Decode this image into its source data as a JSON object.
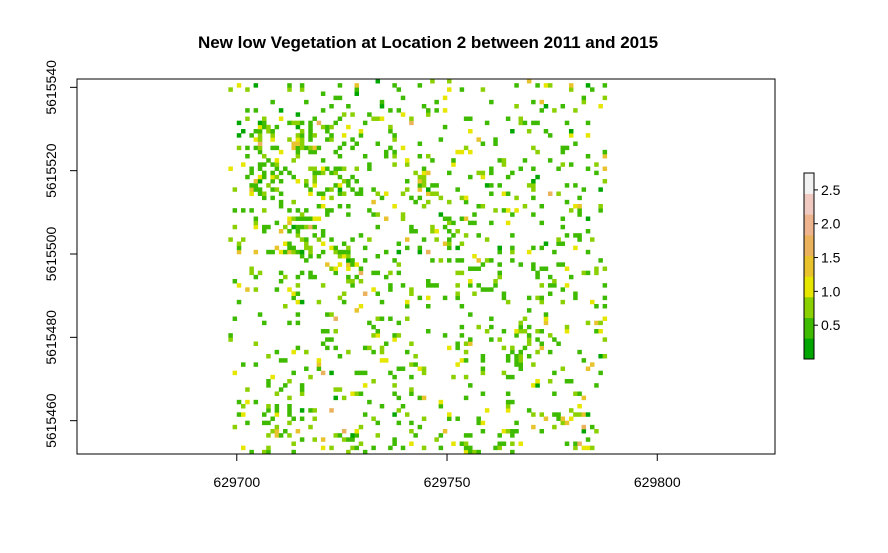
{
  "chart_data": {
    "type": "heatmap",
    "title": "New low Vegetation at Location 2 between 2011 and 2015",
    "xlabel": "",
    "ylabel": "",
    "xlim": [
      629662,
      629828
    ],
    "ylim": [
      5615452,
      5615542
    ],
    "x_ticks": [
      629700,
      629750,
      629800
    ],
    "y_ticks": [
      5615460,
      5615480,
      5615500,
      5615520,
      5615540
    ],
    "raster_extent": {
      "xmin": 629698,
      "xmax": 629788,
      "ymin": 5615452,
      "ymax": 5615542
    },
    "cell_size": 1,
    "value_range": [
      0.0,
      2.75
    ],
    "legend": {
      "placement": "right",
      "ticks": [
        "0.5",
        "1.0",
        "1.5",
        "2.0",
        "2.5"
      ],
      "tick_values": [
        0.5,
        1.0,
        1.5,
        2.0,
        2.5
      ],
      "colors": [
        "#00A600",
        "#3EBB00",
        "#8BD000",
        "#E6E600",
        "#E8C32E",
        "#EBB25E",
        "#EDB48E",
        "#F0C9C0",
        "#F2F2F2"
      ]
    },
    "grid": false,
    "clusters": [
      {
        "x": 629704,
        "y": 5615529,
        "r": 5,
        "density": 0.55
      },
      {
        "x": 629717,
        "y": 5615528,
        "r": 5,
        "density": 0.5
      },
      {
        "x": 629707,
        "y": 5615518,
        "r": 5,
        "density": 0.55
      },
      {
        "x": 629723,
        "y": 5615516,
        "r": 6,
        "density": 0.5
      },
      {
        "x": 629716,
        "y": 5615504,
        "r": 6,
        "density": 0.55
      },
      {
        "x": 629726,
        "y": 5615498,
        "r": 5,
        "density": 0.45
      },
      {
        "x": 629738,
        "y": 5615524,
        "r": 4,
        "density": 0.35
      },
      {
        "x": 629745,
        "y": 5615515,
        "r": 4,
        "density": 0.4
      },
      {
        "x": 629750,
        "y": 5615505,
        "r": 5,
        "density": 0.45
      },
      {
        "x": 629756,
        "y": 5615495,
        "r": 5,
        "density": 0.4
      },
      {
        "x": 629768,
        "y": 5615478,
        "r": 5,
        "density": 0.45
      },
      {
        "x": 629735,
        "y": 5615478,
        "r": 4,
        "density": 0.3
      },
      {
        "x": 629753,
        "y": 5615480,
        "r": 4,
        "density": 0.3
      },
      {
        "x": 629709,
        "y": 5615459,
        "r": 4,
        "density": 0.3
      },
      {
        "x": 629728,
        "y": 5615455,
        "r": 4,
        "density": 0.35
      },
      {
        "x": 629765,
        "y": 5615455,
        "r": 4,
        "density": 0.35
      },
      {
        "x": 629778,
        "y": 5615460,
        "r": 3,
        "density": 0.3
      }
    ],
    "background_density": 0.1
  }
}
